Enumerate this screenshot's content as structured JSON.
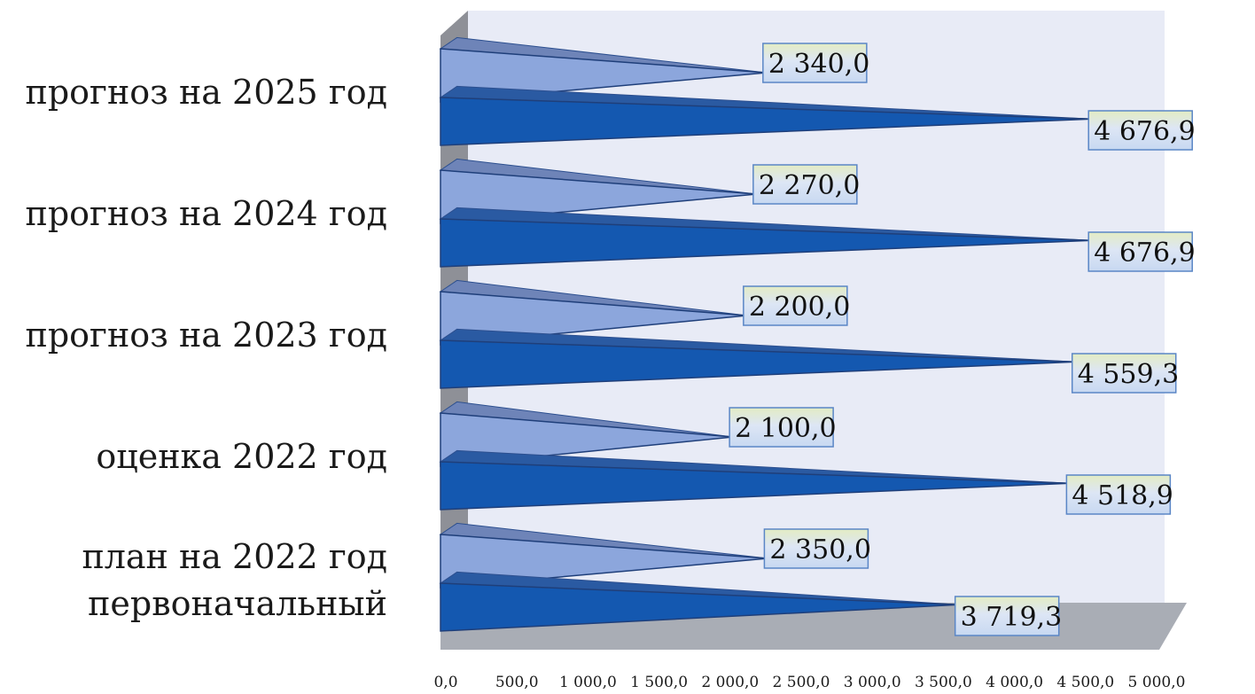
{
  "chart_data": {
    "type": "bar",
    "orientation": "horizontal",
    "style": "3d-pyramid",
    "categories": [
      [
        "план на 2022 год",
        "первоначальный"
      ],
      [
        "оценка 2022 год"
      ],
      [
        "прогноз на 2023 год"
      ],
      [
        "прогноз на 2024 год"
      ],
      [
        "прогноз на 2025 год"
      ]
    ],
    "series": [
      {
        "color": "#8ca6dc",
        "values": [
          2350.0,
          2100.0,
          2200.0,
          2270.0,
          2340.0
        ],
        "labels": [
          "2 350,0",
          "2 100,0",
          "2 200,0",
          "2 270,0",
          "2 340,0"
        ]
      },
      {
        "color": "#1458b0",
        "values": [
          3719.3,
          4518.9,
          4559.3,
          4676.9,
          4676.9
        ],
        "labels": [
          "3 719,3",
          "4 518,9",
          "4 559,3",
          "4 676,9",
          "4 676,9"
        ]
      }
    ],
    "x_ticks": [
      "0,0",
      "500,0",
      "1 000,0",
      "1 500,0",
      "2 000,0",
      "2 500,0",
      "3 000,0",
      "3 500,0",
      "4 000,0",
      "4 500,0",
      "5 000,0"
    ],
    "xlim": [
      0,
      5000
    ],
    "grid": false,
    "legend": "none"
  }
}
